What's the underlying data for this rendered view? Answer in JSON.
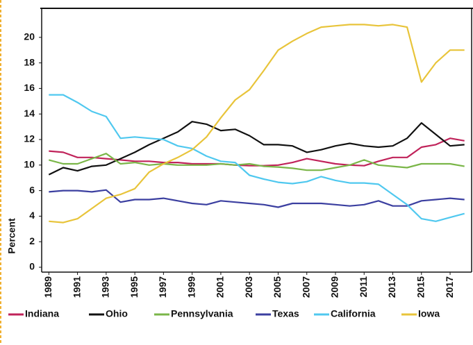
{
  "chart_data": {
    "type": "line",
    "y_label": "Percent",
    "x": [
      1989,
      1990,
      1991,
      1992,
      1993,
      1994,
      1995,
      1996,
      1997,
      1998,
      1999,
      2000,
      2001,
      2002,
      2003,
      2004,
      2005,
      2006,
      2007,
      2008,
      2009,
      2010,
      2011,
      2012,
      2013,
      2014,
      2015,
      2016,
      2017,
      2018
    ],
    "xticks": [
      1989,
      1991,
      1993,
      1995,
      1997,
      1999,
      2001,
      2003,
      2005,
      2007,
      2009,
      2011,
      2013,
      2015,
      2017
    ],
    "xlim": [
      1988.5,
      2018.5
    ],
    "ylim": [
      0,
      22
    ],
    "yticks": [
      0,
      2,
      4,
      6,
      10,
      12,
      14,
      16,
      18,
      20
    ],
    "series": [
      {
        "name": "Indiana",
        "color": "#c0235a",
        "values": [
          11.1,
          11.0,
          10.6,
          10.6,
          10.5,
          10.4,
          10.3,
          10.3,
          10.2,
          10.2,
          10.1,
          10.1,
          10.1,
          10.0,
          9.9,
          9.9,
          10.0,
          10.2,
          10.5,
          10.3,
          10.1,
          10.0,
          9.9,
          10.3,
          10.6,
          10.6,
          11.4,
          11.6,
          12.1,
          11.9
        ]
      },
      {
        "name": "Ohio",
        "color": "#111111",
        "values": [
          8.5,
          9.6,
          9.1,
          9.8,
          10.0,
          10.5,
          11.0,
          11.6,
          12.1,
          12.6,
          13.4,
          13.2,
          12.7,
          12.8,
          12.3,
          11.6,
          11.6,
          11.5,
          11.0,
          11.2,
          11.5,
          11.7,
          11.5,
          11.4,
          11.5,
          12.1,
          13.3,
          12.4,
          11.5,
          11.6
        ]
      },
      {
        "name": "Pennsylvania",
        "color": "#7ab648",
        "values": [
          10.4,
          10.1,
          10.1,
          10.5,
          10.9,
          10.1,
          10.2,
          10.0,
          10.1,
          10.0,
          10.0,
          10.0,
          10.1,
          10.0,
          10.1,
          9.8,
          9.7,
          9.5,
          9.2,
          9.2,
          9.6,
          10.0,
          10.4,
          10.0,
          9.8,
          9.6,
          10.1,
          10.1,
          10.1,
          9.8
        ]
      },
      {
        "name": "Texas",
        "color": "#3b3fa0",
        "values": [
          5.9,
          6.0,
          6.0,
          5.9,
          6.1,
          5.1,
          5.3,
          5.3,
          5.4,
          5.2,
          5.0,
          4.9,
          5.2,
          5.1,
          5.0,
          4.9,
          4.7,
          5.0,
          5.0,
          5.0,
          4.9,
          4.8,
          4.9,
          5.2,
          4.8,
          4.8,
          5.2,
          5.3,
          5.4,
          5.3
        ]
      },
      {
        "name": "California",
        "color": "#4fc8ef",
        "values": [
          15.5,
          15.5,
          14.9,
          14.2,
          13.8,
          12.1,
          12.2,
          12.1,
          12.0,
          11.5,
          11.3,
          10.7,
          10.3,
          10.2,
          8.4,
          7.8,
          7.3,
          7.1,
          7.4,
          8.2,
          7.6,
          7.2,
          7.2,
          7.0,
          5.7,
          4.9,
          3.8,
          3.6,
          3.9,
          4.2
        ]
      },
      {
        "name": "Iowa",
        "color": "#e8c43a",
        "values": [
          3.6,
          3.5,
          3.8,
          4.6,
          5.4,
          5.7,
          6.3,
          8.9,
          10.1,
          10.6,
          11.2,
          12.2,
          13.7,
          15.1,
          15.9,
          17.4,
          19.0,
          19.7,
          20.3,
          20.8,
          20.9,
          21.0,
          21.0,
          20.9,
          21.0,
          20.8,
          16.5,
          18.0,
          19.0,
          19.0
        ]
      }
    ]
  }
}
